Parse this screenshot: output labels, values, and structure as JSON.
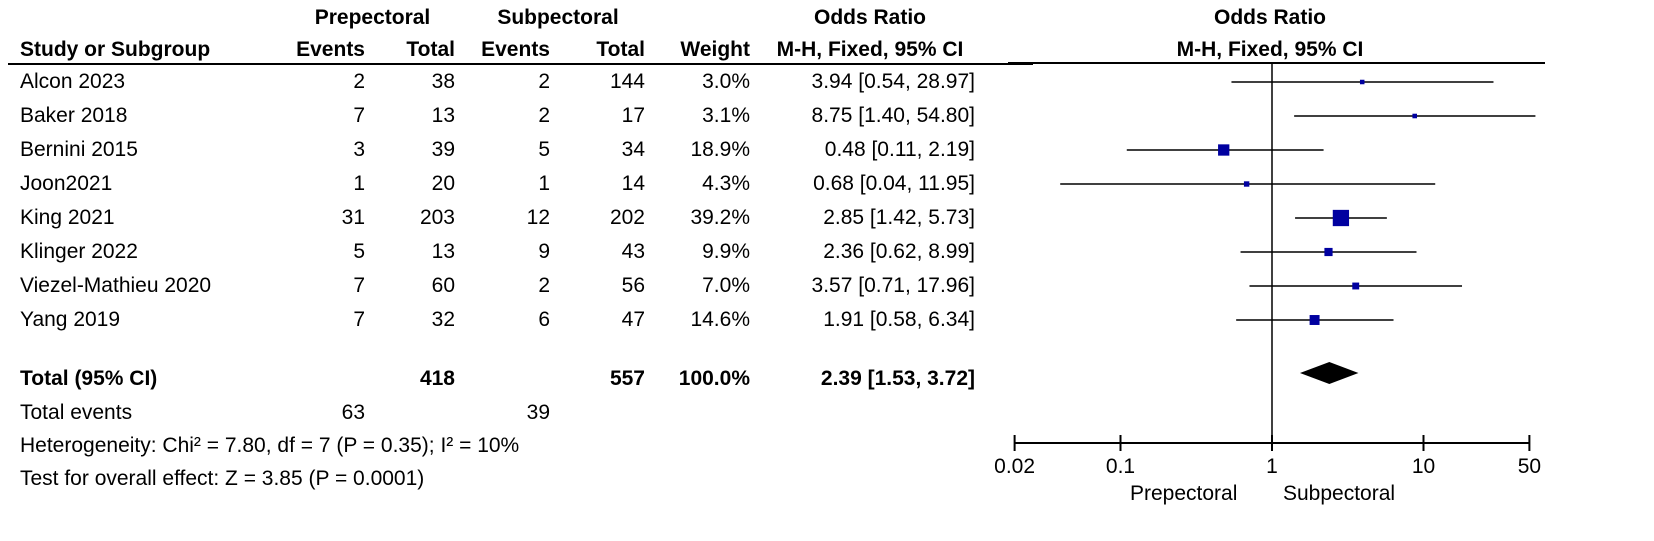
{
  "header": {
    "group1": "Prepectoral",
    "group2": "Subpectoral",
    "or_title": "Odds Ratio",
    "plot_title": "Odds Ratio",
    "col_study": "Study or Subgroup",
    "col_events1": "Events",
    "col_total1": "Total",
    "col_events2": "Events",
    "col_total2": "Total",
    "col_weight": "Weight",
    "col_or": "M-H, Fixed, 95% CI",
    "plot_method": "M-H, Fixed, 95% CI"
  },
  "studies": [
    {
      "name": "Alcon 2023",
      "e1": "2",
      "n1": "38",
      "e2": "2",
      "n2": "144",
      "weight": "3.0%",
      "ci": "3.94 [0.54, 28.97]"
    },
    {
      "name": "Baker 2018",
      "e1": "7",
      "n1": "13",
      "e2": "2",
      "n2": "17",
      "weight": "3.1%",
      "ci": "8.75 [1.40, 54.80]"
    },
    {
      "name": "Bernini 2015",
      "e1": "3",
      "n1": "39",
      "e2": "5",
      "n2": "34",
      "weight": "18.9%",
      "ci": "0.48 [0.11, 2.19]"
    },
    {
      "name": "Joon2021",
      "e1": "1",
      "n1": "20",
      "e2": "1",
      "n2": "14",
      "weight": "4.3%",
      "ci": "0.68 [0.04, 11.95]"
    },
    {
      "name": "King 2021",
      "e1": "31",
      "n1": "203",
      "e2": "12",
      "n2": "202",
      "weight": "39.2%",
      "ci": "2.85 [1.42, 5.73]"
    },
    {
      "name": "Klinger 2022",
      "e1": "5",
      "n1": "13",
      "e2": "9",
      "n2": "43",
      "weight": "9.9%",
      "ci": "2.36 [0.62, 8.99]"
    },
    {
      "name": "Viezel-Mathieu 2020",
      "e1": "7",
      "n1": "60",
      "e2": "2",
      "n2": "56",
      "weight": "7.0%",
      "ci": "3.57 [0.71, 17.96]"
    },
    {
      "name": "Yang 2019",
      "e1": "7",
      "n1": "32",
      "e2": "6",
      "n2": "47",
      "weight": "14.6%",
      "ci": "1.91 [0.58, 6.34]"
    }
  ],
  "total": {
    "label": "Total (95% CI)",
    "n1": "418",
    "n2": "557",
    "weight": "100.0%",
    "ci": "2.39 [1.53, 3.72]",
    "events_label": "Total events",
    "e1": "63",
    "e2": "39",
    "heterogeneity": "Heterogeneity: Chi² = 7.80, df = 7 (P = 0.35); I² = 10%",
    "overall": "Test for overall effect: Z = 3.85 (P = 0.0001)"
  },
  "axis": {
    "left_label": "Prepectoral",
    "right_label": "Subpectoral"
  },
  "colors": {
    "marker": "#0000a0",
    "diamond": "#000000",
    "line": "#000000"
  },
  "chart_data": {
    "type": "forest",
    "scale": "log",
    "xlim": [
      0.02,
      50
    ],
    "ticks": [
      0.02,
      0.1,
      1,
      10,
      50
    ],
    "tick_labels": [
      "0.02",
      "0.1",
      "1",
      "10",
      "50"
    ],
    "reference": 1,
    "series": [
      {
        "study": "Alcon 2023",
        "or": 3.94,
        "lo": 0.54,
        "hi": 28.97,
        "weight": 3.0
      },
      {
        "study": "Baker 2018",
        "or": 8.75,
        "lo": 1.4,
        "hi": 54.8,
        "weight": 3.1
      },
      {
        "study": "Bernini 2015",
        "or": 0.48,
        "lo": 0.11,
        "hi": 2.19,
        "weight": 18.9
      },
      {
        "study": "Joon2021",
        "or": 0.68,
        "lo": 0.04,
        "hi": 11.95,
        "weight": 4.3
      },
      {
        "study": "King 2021",
        "or": 2.85,
        "lo": 1.42,
        "hi": 5.73,
        "weight": 39.2
      },
      {
        "study": "Klinger 2022",
        "or": 2.36,
        "lo": 0.62,
        "hi": 8.99,
        "weight": 9.9
      },
      {
        "study": "Viezel-Mathieu 2020",
        "or": 3.57,
        "lo": 0.71,
        "hi": 17.96,
        "weight": 7.0
      },
      {
        "study": "Yang 2019",
        "or": 1.91,
        "lo": 0.58,
        "hi": 6.34,
        "weight": 14.6
      }
    ],
    "pooled": {
      "or": 2.39,
      "lo": 1.53,
      "hi": 3.72
    }
  }
}
